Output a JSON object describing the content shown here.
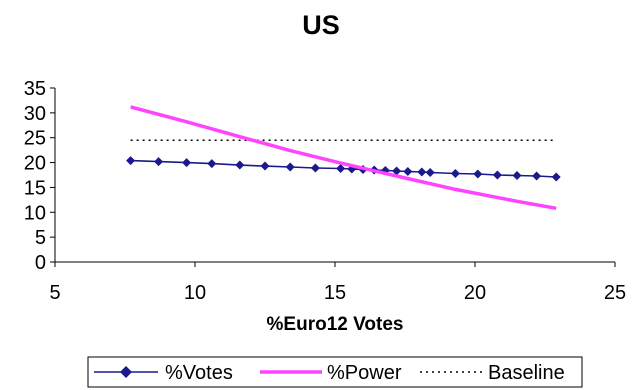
{
  "chart_data": {
    "type": "line",
    "title": "US",
    "xlabel": "%Euro12 Votes",
    "ylabel": "",
    "xlim": [
      5,
      25
    ],
    "ylim": [
      0,
      35
    ],
    "x_ticks": [
      5,
      10,
      15,
      20,
      25
    ],
    "y_ticks": [
      0,
      5,
      10,
      15,
      20,
      25,
      30,
      35
    ],
    "grid": false,
    "legend_position": "bottom",
    "series": [
      {
        "name": "%Votes",
        "color": "#1a1a8c",
        "marker": "diamond",
        "line_style": "solid",
        "x": [
          7.7,
          8.7,
          9.7,
          10.6,
          11.6,
          12.5,
          13.4,
          14.3,
          15.2,
          15.6,
          16.0,
          16.4,
          16.8,
          17.2,
          17.6,
          18.1,
          18.4,
          19.3,
          20.1,
          20.8,
          21.5,
          22.2,
          22.9
        ],
        "y": [
          20.4,
          20.2,
          20.0,
          19.8,
          19.5,
          19.3,
          19.1,
          18.9,
          18.8,
          18.7,
          18.6,
          18.5,
          18.4,
          18.3,
          18.2,
          18.1,
          18.0,
          17.8,
          17.7,
          17.5,
          17.4,
          17.3,
          17.1
        ]
      },
      {
        "name": "%Power",
        "color": "#ff44ff",
        "marker": "none",
        "line_style": "solid",
        "x": [
          7.7,
          9.7,
          11.6,
          13.4,
          15.2,
          17.2,
          19.3,
          21.5,
          22.9
        ],
        "y": [
          31.2,
          28.2,
          25.2,
          22.4,
          19.9,
          17.3,
          14.6,
          12.2,
          10.8
        ]
      },
      {
        "name": "Baseline",
        "color": "#000000",
        "marker": "none",
        "line_style": "dotted",
        "x": [
          7.7,
          22.9
        ],
        "y": [
          24.5,
          24.5
        ]
      }
    ]
  }
}
